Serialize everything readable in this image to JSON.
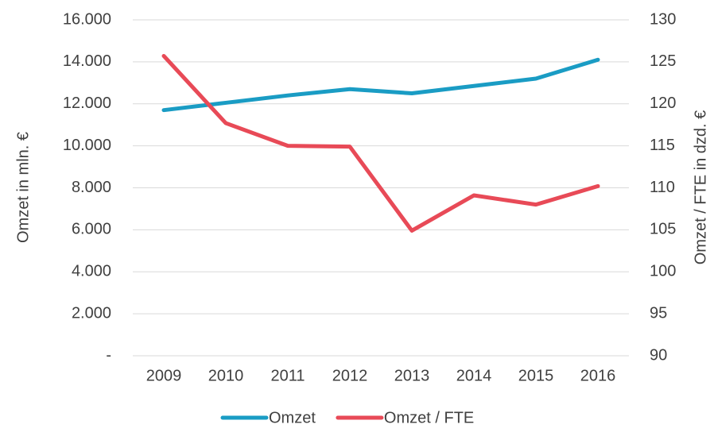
{
  "chart_data": {
    "type": "line",
    "categories": [
      "2009",
      "2010",
      "2011",
      "2012",
      "2013",
      "2014",
      "2015",
      "2016"
    ],
    "series": [
      {
        "name": "Omzet",
        "color": "#1a9cc4",
        "values": [
          11700,
          12050,
          12400,
          12700,
          12500,
          12850,
          13200,
          14100
        ]
      },
      {
        "name": "Omzet / FTE",
        "color": "#e84a57",
        "axis": "y2",
        "values": [
          125.7,
          117.7,
          115.0,
          114.9,
          104.9,
          109.1,
          108.0,
          110.2
        ]
      }
    ],
    "ylabel": "Omzet in mln. €",
    "y2label": "Omzet / FTE in dzd. €",
    "ylim": [
      0,
      16000
    ],
    "yticks": [
      {
        "value": 0,
        "label": "-"
      },
      {
        "value": 2000,
        "label": "2.000"
      },
      {
        "value": 4000,
        "label": "4.000"
      },
      {
        "value": 6000,
        "label": "6.000"
      },
      {
        "value": 8000,
        "label": "8.000"
      },
      {
        "value": 10000,
        "label": "10.000"
      },
      {
        "value": 12000,
        "label": "12.000"
      },
      {
        "value": 14000,
        "label": "14.000"
      },
      {
        "value": 16000,
        "label": "16.000"
      }
    ],
    "y2lim": [
      90,
      130
    ],
    "y2ticks": [
      90,
      95,
      100,
      105,
      110,
      115,
      120,
      125,
      130
    ],
    "grid": true,
    "legend": "bottom"
  }
}
